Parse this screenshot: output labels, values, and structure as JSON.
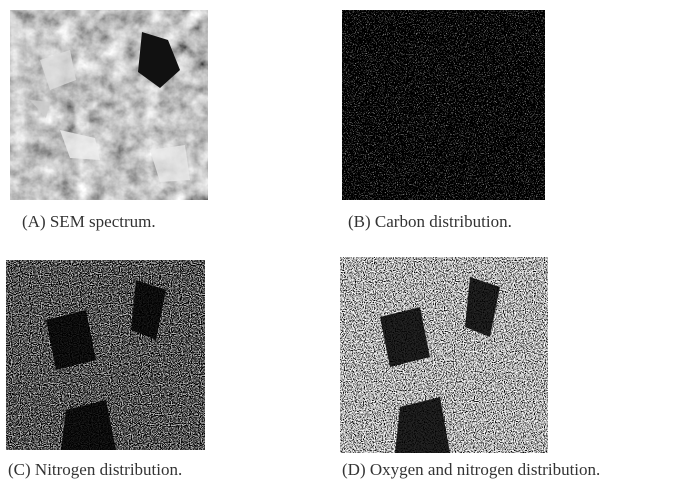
{
  "panels": [
    {
      "caption": "(A) SEM spectrum."
    },
    {
      "caption": "(B) Carbon distribution."
    },
    {
      "caption": "(C) Nitrogen distribution."
    },
    {
      "caption": "(D) Oxygen and nitrogen distribution."
    }
  ]
}
